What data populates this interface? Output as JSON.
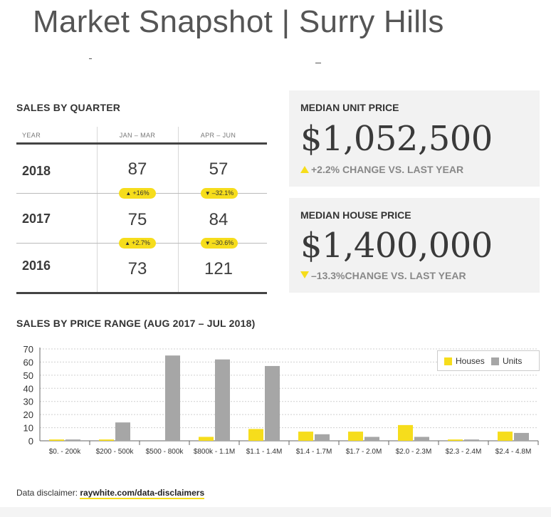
{
  "page": {
    "title": "Market Snapshot | Surry Hills"
  },
  "sales_by_quarter": {
    "title": "SALES BY QUARTER",
    "columns": [
      "YEAR",
      "JAN – MAR",
      "APR – JUN"
    ],
    "rows": [
      {
        "year": "2018",
        "q1": "87",
        "q2": "57"
      },
      {
        "year": "2017",
        "q1": "75",
        "q2": "84"
      },
      {
        "year": "2016",
        "q1": "73",
        "q2": "121"
      }
    ],
    "changes": [
      {
        "q1": "+16%",
        "q1_dir": "up",
        "q2": "–32.1%",
        "q2_dir": "down"
      },
      {
        "q1": "+2.7%",
        "q1_dir": "up",
        "q2": "–30.6%",
        "q2_dir": "down"
      }
    ]
  },
  "median_unit": {
    "label": "MEDIAN UNIT PRICE",
    "value": "$1,052,500",
    "change": "+2.2% CHANGE VS. LAST YEAR",
    "direction": "up"
  },
  "median_house": {
    "label": "MEDIAN HOUSE PRICE",
    "value": "$1,400,000",
    "change": "–13.3%CHANGE VS. LAST YEAR",
    "direction": "down"
  },
  "colors": {
    "accent": "#f6dd1c",
    "houses": "#f6dd1c",
    "units": "#a6a6a6"
  },
  "chart_data": {
    "type": "bar",
    "title": "SALES BY PRICE RANGE (AUG 2017 – JUL 2018)",
    "categories": [
      "$0. - 200k",
      "$200 - 500k",
      "$500 - 800k",
      "$800k - 1.1M",
      "$1.1 - 1.4M",
      "$1.4 - 1.7M",
      "$1.7 - 2.0M",
      "$2.0 - 2.3M",
      "$2.3 - 2.4M",
      "$2.4 - 4.8M"
    ],
    "series": [
      {
        "name": "Houses",
        "values": [
          1,
          1,
          0,
          3,
          9,
          7,
          7,
          12,
          1,
          7
        ]
      },
      {
        "name": "Units",
        "values": [
          1,
          14,
          65,
          62,
          57,
          5,
          3,
          3,
          1,
          6
        ]
      }
    ],
    "ylim": [
      0,
      70
    ],
    "yticks": [
      "0",
      "10",
      "20",
      "30",
      "40",
      "50",
      "60",
      "70"
    ],
    "grid": true,
    "legend": "top-right"
  },
  "disclaimer": {
    "label": "Data disclaimer: ",
    "link": "raywhite.com/data-disclaimers"
  }
}
